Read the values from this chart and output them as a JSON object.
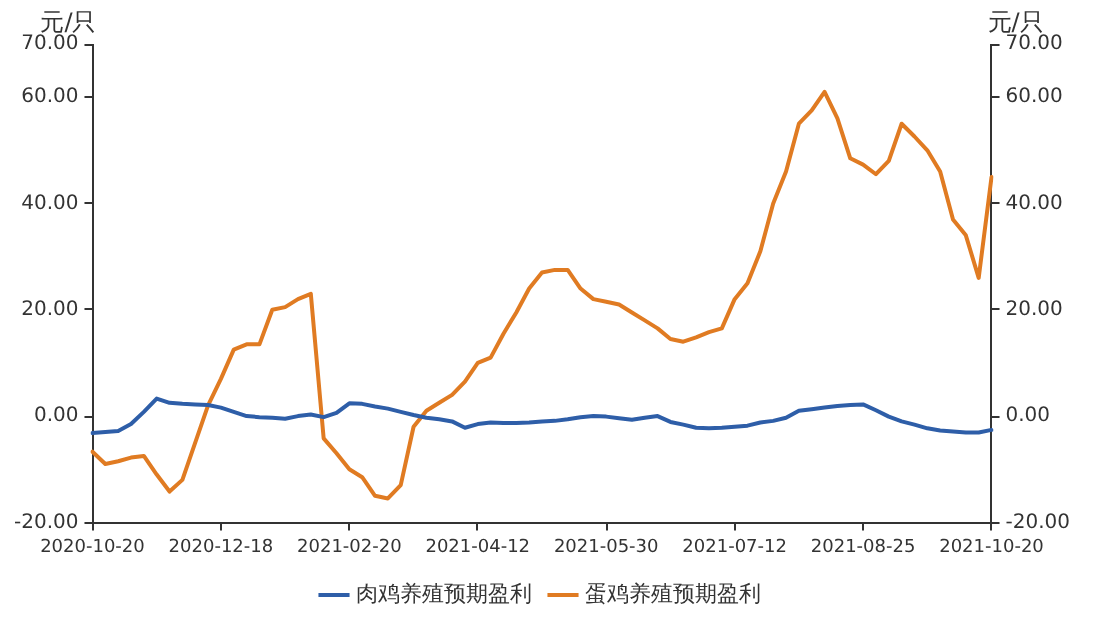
{
  "chart_data": {
    "type": "line",
    "ylabel": "元/只",
    "y2label": "元/只",
    "categories": [
      "2020-10-20",
      null,
      null,
      null,
      null,
      null,
      null,
      null,
      null,
      null,
      "2020-12-18",
      null,
      null,
      null,
      null,
      null,
      null,
      null,
      null,
      null,
      "2021-02-20",
      null,
      null,
      null,
      null,
      null,
      null,
      null,
      null,
      null,
      "2021-04-12",
      null,
      null,
      null,
      null,
      null,
      null,
      null,
      null,
      null,
      "2021-05-30",
      null,
      null,
      null,
      null,
      null,
      null,
      null,
      null,
      null,
      "2021-07-12",
      null,
      null,
      null,
      null,
      null,
      null,
      null,
      null,
      null,
      "2021-08-25",
      null,
      null,
      null,
      null,
      null,
      null,
      null,
      null,
      null,
      "2021-10-20"
    ],
    "series": [
      {
        "name": "肉鸡养殖预期盈利",
        "color": "#2e5ea8",
        "values": [
          -3.2,
          -3,
          -2.8,
          -1.5,
          0.8,
          3.3,
          2.5,
          2.3,
          2.2,
          2.1,
          1.6,
          0.8,
          0,
          -0.2,
          -0.3,
          -0.5,
          0,
          0.3,
          -0.2,
          0.6,
          2.4,
          2.3,
          1.8,
          1.4,
          0.8,
          0.2,
          -0.3,
          -0.6,
          -1,
          -2.2,
          -1.5,
          -1.2,
          -1.3,
          -1.3,
          -1.2,
          -1,
          -0.9,
          -0.6,
          -0.2,
          0,
          -0.1,
          -0.4,
          -0.7,
          -0.3,
          0,
          -1.1,
          -1.6,
          -2.2,
          -2.3,
          -2.2,
          -2,
          -1.8,
          -1.2,
          -0.9,
          -0.3,
          1,
          1.3,
          1.6,
          1.9,
          2.1,
          2.2,
          1.1,
          -0.1,
          -1,
          -1.6,
          -2.3,
          -2.7,
          -2.9,
          -3.1,
          -3.1,
          -2.6
        ]
      },
      {
        "name": "蛋鸡养殖预期盈利",
        "color": "#e07b22",
        "values": [
          -6.7,
          -9,
          -8.5,
          -7.8,
          -7.5,
          -11,
          -14.2,
          -12,
          -5,
          2,
          7,
          12.5,
          13.5,
          13.5,
          20,
          20.5,
          22,
          23,
          -4.2,
          -7,
          -10,
          -11.5,
          -15,
          -15.5,
          -13,
          -2,
          1,
          2.5,
          4,
          6.5,
          10,
          11,
          15.5,
          19.5,
          24,
          27,
          27.5,
          27.5,
          24,
          22,
          21.5,
          21,
          19.5,
          18,
          16.5,
          14.5,
          14,
          14.8,
          15.8,
          16.5,
          22,
          25,
          31,
          40,
          46,
          55,
          57.5,
          61,
          56,
          48.5,
          47.3,
          45.5,
          48,
          55,
          52.6,
          50,
          46,
          37,
          34,
          26,
          45
        ]
      }
    ],
    "ylim": [
      -20,
      70
    ],
    "yticks": [
      {
        "value": -20,
        "label": "-20.00"
      },
      {
        "value": 0,
        "label": "0.00"
      },
      {
        "value": 20,
        "label": "20.00"
      },
      {
        "value": 40,
        "label": "40.00"
      },
      {
        "value": 60,
        "label": "60.00"
      },
      {
        "value": 70,
        "label": "70.00"
      }
    ],
    "y2lim": [
      -20,
      70
    ],
    "y2ticks": [
      {
        "value": -20,
        "label": "-20.00"
      },
      {
        "value": 0,
        "label": "0.00"
      },
      {
        "value": 20,
        "label": "20.00"
      },
      {
        "value": 40,
        "label": "40.00"
      },
      {
        "value": 60,
        "label": "60.00"
      },
      {
        "value": 70,
        "label": "70.00"
      }
    ],
    "grid": false,
    "legend": "bottom",
    "marker": "none",
    "line_style": "solid"
  }
}
